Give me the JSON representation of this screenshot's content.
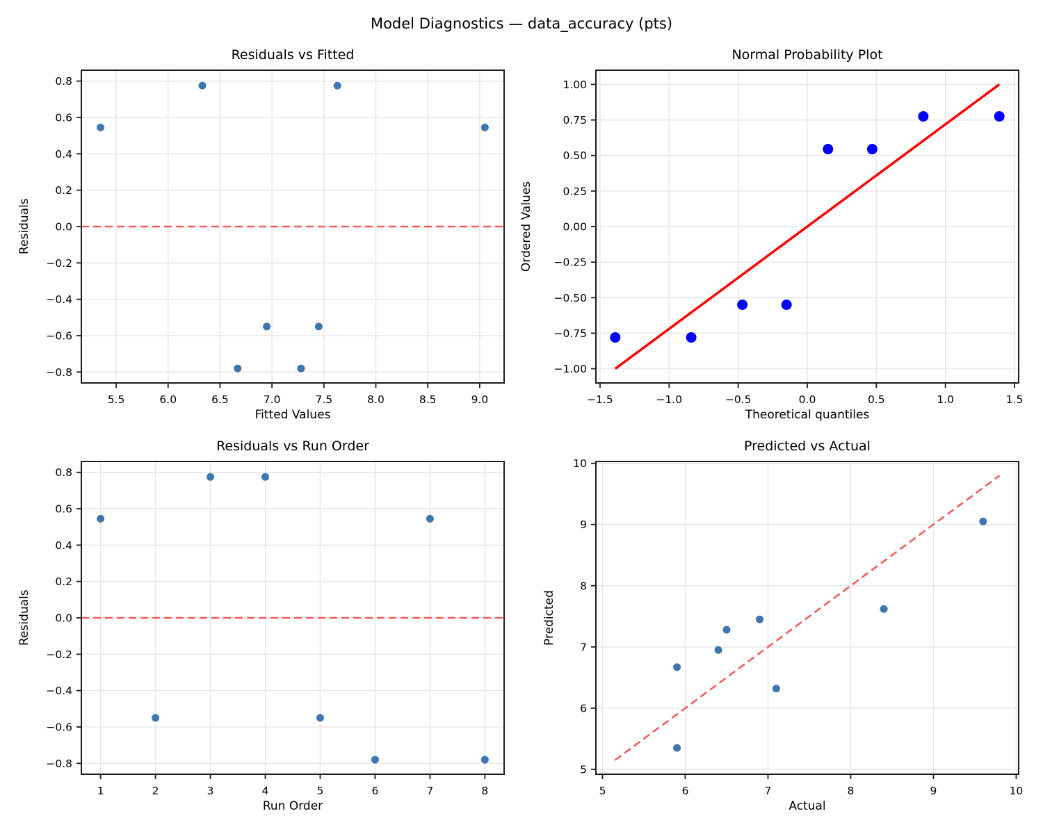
{
  "figure": {
    "title": "Model Diagnostics — data_accuracy (pts)"
  },
  "colors": {
    "scatter_marker": "#3e76ae",
    "probplot_marker": "#0000ff",
    "fit_line": "#ff0000",
    "reference_dashed": "#f25c5c",
    "grid": "#e7e7e7",
    "spine": "#1c1c1c",
    "text": "#000000",
    "background": "#ffffff"
  },
  "chart_data": [
    {
      "id": "residuals-vs-fitted",
      "type": "scatter",
      "title": "Residuals vs Fitted",
      "xlabel": "Fitted Values",
      "ylabel": "Residuals",
      "grid": true,
      "xlim": [
        5.165,
        9.235
      ],
      "ylim": [
        -0.86,
        0.86
      ],
      "xticks": {
        "values": [
          5.5,
          6.0,
          6.5,
          7.0,
          7.5,
          8.0,
          8.5,
          9.0
        ],
        "labels": [
          "5.5",
          "6.0",
          "6.5",
          "7.0",
          "7.5",
          "8.0",
          "8.5",
          "9.0"
        ]
      },
      "yticks": {
        "values": [
          -0.8,
          -0.6,
          -0.4,
          -0.2,
          0.0,
          0.2,
          0.4,
          0.6,
          0.8
        ],
        "labels": [
          "−0.8",
          "−0.6",
          "−0.4",
          "−0.2",
          "0.0",
          "0.2",
          "0.4",
          "0.6",
          "0.8"
        ]
      },
      "points": [
        [
          5.35,
          0.545
        ],
        [
          6.33,
          0.775
        ],
        [
          6.67,
          -0.78
        ],
        [
          6.95,
          -0.55
        ],
        [
          7.28,
          -0.78
        ],
        [
          7.45,
          -0.55
        ],
        [
          7.63,
          0.775
        ],
        [
          9.05,
          0.545
        ]
      ],
      "marker": {
        "color": "#3e76ae",
        "radius": 5.5
      },
      "lines": [
        {
          "name": "zero-reference-line",
          "x1": 5.165,
          "y1": 0,
          "x2": 9.235,
          "y2": 0,
          "color": "#f25c5c",
          "width": 2.6,
          "dash": "11 6"
        }
      ]
    },
    {
      "id": "normal-probability-plot",
      "type": "scatter",
      "title": "Normal Probability Plot",
      "xlabel": "Theoretical quantiles",
      "ylabel": "Ordered Values",
      "grid": true,
      "xlim": [
        -1.53,
        1.53
      ],
      "ylim": [
        -1.1,
        1.1
      ],
      "xticks": {
        "values": [
          -1.5,
          -1.0,
          -0.5,
          0.0,
          0.5,
          1.0,
          1.5
        ],
        "labels": [
          "−1.5",
          "−1.0",
          "−0.5",
          "0.0",
          "0.5",
          "1.0",
          "1.5"
        ]
      },
      "yticks": {
        "values": [
          -1.0,
          -0.75,
          -0.5,
          -0.25,
          0.0,
          0.25,
          0.5,
          0.75,
          1.0
        ],
        "labels": [
          "−1.00",
          "−0.75",
          "−0.50",
          "−0.25",
          "0.00",
          "0.25",
          "0.50",
          "0.75",
          "1.00"
        ]
      },
      "points": [
        [
          -1.39,
          -0.78
        ],
        [
          -0.84,
          -0.78
        ],
        [
          -0.47,
          -0.55
        ],
        [
          -0.15,
          -0.55
        ],
        [
          0.15,
          0.545
        ],
        [
          0.47,
          0.545
        ],
        [
          0.84,
          0.775
        ],
        [
          1.39,
          0.775
        ]
      ],
      "marker": {
        "color": "#0000ff",
        "radius": 7.5
      },
      "lines": [
        {
          "name": "probplot-fit-line",
          "x1": -1.39,
          "y1": -1.0,
          "x2": 1.39,
          "y2": 1.0,
          "color": "#ff0000",
          "width": 3.5,
          "dash": null
        }
      ]
    },
    {
      "id": "residuals-vs-run-order",
      "type": "scatter",
      "title": "Residuals vs Run Order",
      "xlabel": "Run Order",
      "ylabel": "Residuals",
      "grid": true,
      "xlim": [
        0.65,
        8.35
      ],
      "ylim": [
        -0.86,
        0.86
      ],
      "xticks": {
        "values": [
          1,
          2,
          3,
          4,
          5,
          6,
          7,
          8
        ],
        "labels": [
          "1",
          "2",
          "3",
          "4",
          "5",
          "6",
          "7",
          "8"
        ]
      },
      "yticks": {
        "values": [
          -0.8,
          -0.6,
          -0.4,
          -0.2,
          0.0,
          0.2,
          0.4,
          0.6,
          0.8
        ],
        "labels": [
          "−0.8",
          "−0.6",
          "−0.4",
          "−0.2",
          "0.0",
          "0.2",
          "0.4",
          "0.6",
          "0.8"
        ]
      },
      "points": [
        [
          1,
          0.545
        ],
        [
          2,
          -0.55
        ],
        [
          3,
          0.775
        ],
        [
          4,
          0.775
        ],
        [
          5,
          -0.55
        ],
        [
          6,
          -0.78
        ],
        [
          7,
          0.545
        ],
        [
          8,
          -0.78
        ]
      ],
      "marker": {
        "color": "#3e76ae",
        "radius": 5.5
      },
      "lines": [
        {
          "name": "zero-reference-line",
          "x1": 0.65,
          "y1": 0,
          "x2": 8.35,
          "y2": 0,
          "color": "#f25c5c",
          "width": 2.6,
          "dash": "11 6"
        }
      ]
    },
    {
      "id": "predicted-vs-actual",
      "type": "scatter",
      "title": "Predicted vs Actual",
      "xlabel": "Actual",
      "ylabel": "Predicted",
      "grid": true,
      "xlim": [
        4.92,
        10.03
      ],
      "ylim": [
        4.92,
        10.03
      ],
      "xticks": {
        "values": [
          5,
          6,
          7,
          8,
          9,
          10
        ],
        "labels": [
          "5",
          "6",
          "7",
          "8",
          "9",
          "10"
        ]
      },
      "yticks": {
        "values": [
          5,
          6,
          7,
          8,
          9,
          10
        ],
        "labels": [
          "5",
          "6",
          "7",
          "8",
          "9",
          "10"
        ]
      },
      "points": [
        [
          5.9,
          5.35
        ],
        [
          5.9,
          6.67
        ],
        [
          6.4,
          6.95
        ],
        [
          6.5,
          7.28
        ],
        [
          6.9,
          7.45
        ],
        [
          7.1,
          6.32
        ],
        [
          8.4,
          7.62
        ],
        [
          9.6,
          9.05
        ]
      ],
      "marker": {
        "color": "#3e76ae",
        "radius": 5.5
      },
      "lines": [
        {
          "name": "identity-line",
          "x1": 5.15,
          "y1": 5.15,
          "x2": 9.8,
          "y2": 9.8,
          "color": "#f25c5c",
          "width": 2.6,
          "dash": "11 6"
        }
      ]
    }
  ]
}
